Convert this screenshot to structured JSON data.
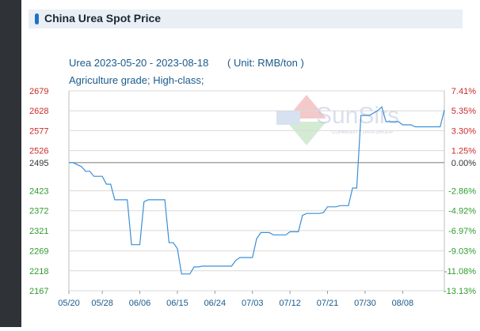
{
  "header": {
    "title": "China Urea Spot Price"
  },
  "chart_data": {
    "type": "line",
    "title": "Urea 2023-05-20 - 2023-08-18",
    "unit": "( Unit: RMB/ton )",
    "subtitle": "Agriculture grade; High-class;",
    "watermark": {
      "brand": "SunSirs",
      "tagline": "COMMODITY DATA GROUP"
    },
    "base_value": 2495,
    "ylim": [
      2167,
      2679
    ],
    "yticks": [
      "2679",
      "2628",
      "2577",
      "2526",
      "2495",
      "2423",
      "2372",
      "2321",
      "2269",
      "2218",
      "2167"
    ],
    "ytick_values": [
      2679,
      2628,
      2577,
      2526,
      2495,
      2423,
      2372,
      2321,
      2269,
      2218,
      2167
    ],
    "pct_ticks": [
      "7.41%",
      "5.35%",
      "3.30%",
      "1.25%",
      "0.00%",
      "-2.86%",
      "-4.92%",
      "-6.97%",
      "-9.03%",
      "-11.08%",
      "-13.13%"
    ],
    "xticks": [
      "05/20",
      "05/28",
      "06/06",
      "06/15",
      "06/24",
      "07/03",
      "07/12",
      "07/21",
      "07/30",
      "08/08"
    ],
    "xlim": [
      "2023-05-20",
      "2023-08-18"
    ],
    "colors": {
      "line": "#3a8fd6",
      "up": "#cc2a2a",
      "down": "#2e9b2e",
      "base": "#333333",
      "text": "#1a5a8c"
    },
    "series": [
      {
        "x": [
          "2023-05-20",
          "2023-05-21",
          "2023-05-22",
          "2023-05-23",
          "2023-05-24",
          "2023-05-25",
          "2023-05-26",
          "2023-05-27",
          "2023-05-28",
          "2023-05-29",
          "2023-05-30",
          "2023-05-31",
          "2023-06-01",
          "2023-06-02",
          "2023-06-03",
          "2023-06-04",
          "2023-06-05",
          "2023-06-06",
          "2023-06-07",
          "2023-06-08",
          "2023-06-09",
          "2023-06-10",
          "2023-06-11",
          "2023-06-12",
          "2023-06-13",
          "2023-06-14",
          "2023-06-15",
          "2023-06-16",
          "2023-06-17",
          "2023-06-18",
          "2023-06-19",
          "2023-06-20",
          "2023-06-21",
          "2023-06-22",
          "2023-06-23",
          "2023-06-24",
          "2023-06-25",
          "2023-06-26",
          "2023-06-27",
          "2023-06-28",
          "2023-06-29",
          "2023-06-30",
          "2023-07-01",
          "2023-07-02",
          "2023-07-03",
          "2023-07-04",
          "2023-07-05",
          "2023-07-06",
          "2023-07-07",
          "2023-07-08",
          "2023-07-09",
          "2023-07-10",
          "2023-07-11",
          "2023-07-12",
          "2023-07-13",
          "2023-07-14",
          "2023-07-15",
          "2023-07-16",
          "2023-07-17",
          "2023-07-18",
          "2023-07-19",
          "2023-07-20",
          "2023-07-21",
          "2023-07-22",
          "2023-07-23",
          "2023-07-24",
          "2023-07-25",
          "2023-07-26",
          "2023-07-27",
          "2023-07-28",
          "2023-07-29",
          "2023-07-30",
          "2023-07-31",
          "2023-08-01",
          "2023-08-02",
          "2023-08-03",
          "2023-08-04",
          "2023-08-05",
          "2023-08-06",
          "2023-08-07",
          "2023-08-08",
          "2023-08-09",
          "2023-08-10",
          "2023-08-11",
          "2023-08-12",
          "2023-08-13",
          "2023-08-14",
          "2023-08-15",
          "2023-08-16",
          "2023-08-17",
          "2023-08-18"
        ],
        "values": [
          2495,
          2495,
          2490,
          2485,
          2473,
          2473,
          2460,
          2460,
          2460,
          2440,
          2440,
          2400,
          2400,
          2400,
          2400,
          2285,
          2285,
          2285,
          2395,
          2400,
          2400,
          2400,
          2400,
          2400,
          2290,
          2290,
          2275,
          2210,
          2210,
          2210,
          2228,
          2228,
          2230,
          2230,
          2230,
          2230,
          2230,
          2230,
          2230,
          2230,
          2245,
          2252,
          2252,
          2252,
          2252,
          2300,
          2316,
          2316,
          2316,
          2310,
          2310,
          2310,
          2310,
          2318,
          2318,
          2318,
          2360,
          2365,
          2365,
          2365,
          2365,
          2367,
          2382,
          2382,
          2382,
          2385,
          2385,
          2385,
          2430,
          2430,
          2616,
          2616,
          2616,
          2622,
          2628,
          2638,
          2600,
          2600,
          2600,
          2600,
          2592,
          2592,
          2592,
          2587,
          2587,
          2587,
          2587,
          2587,
          2587,
          2587,
          2630
        ]
      }
    ]
  }
}
